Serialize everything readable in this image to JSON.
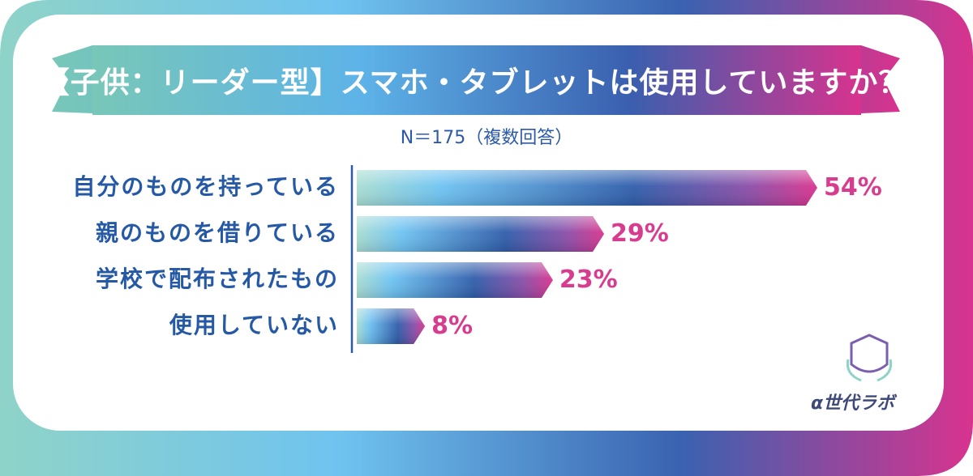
{
  "header": {
    "title": "【子供：リーダー型】スマホ・タブレットは使用していますか？",
    "subtitle": "N＝175（複数回答）"
  },
  "brand": {
    "name": "α世代ラボ",
    "logo_icon": "alpha-shield-logo"
  },
  "colors": {
    "bar_start": "#9fd7cf",
    "bar_mid": "#6ec3f2",
    "bar_deep": "#2c5aa8",
    "bar_end": "#d9348f",
    "label_blue": "#2559a6",
    "value_pink": "#d83c8e"
  },
  "chart_data": {
    "type": "bar",
    "orientation": "horizontal",
    "title": "【子供：リーダー型】スマホ・タブレットは使用していますか？",
    "subtitle": "N＝175（複数回答）",
    "categories": [
      "自分のものを持っている",
      "親のものを借りている",
      "学校で配布されたもの",
      "使用していない"
    ],
    "values": [
      54,
      29,
      23,
      8
    ],
    "value_labels": [
      "54%",
      "29%",
      "23%",
      "8%"
    ],
    "unit": "%",
    "xlim": [
      0,
      54
    ],
    "grid": false,
    "legend": "none"
  }
}
